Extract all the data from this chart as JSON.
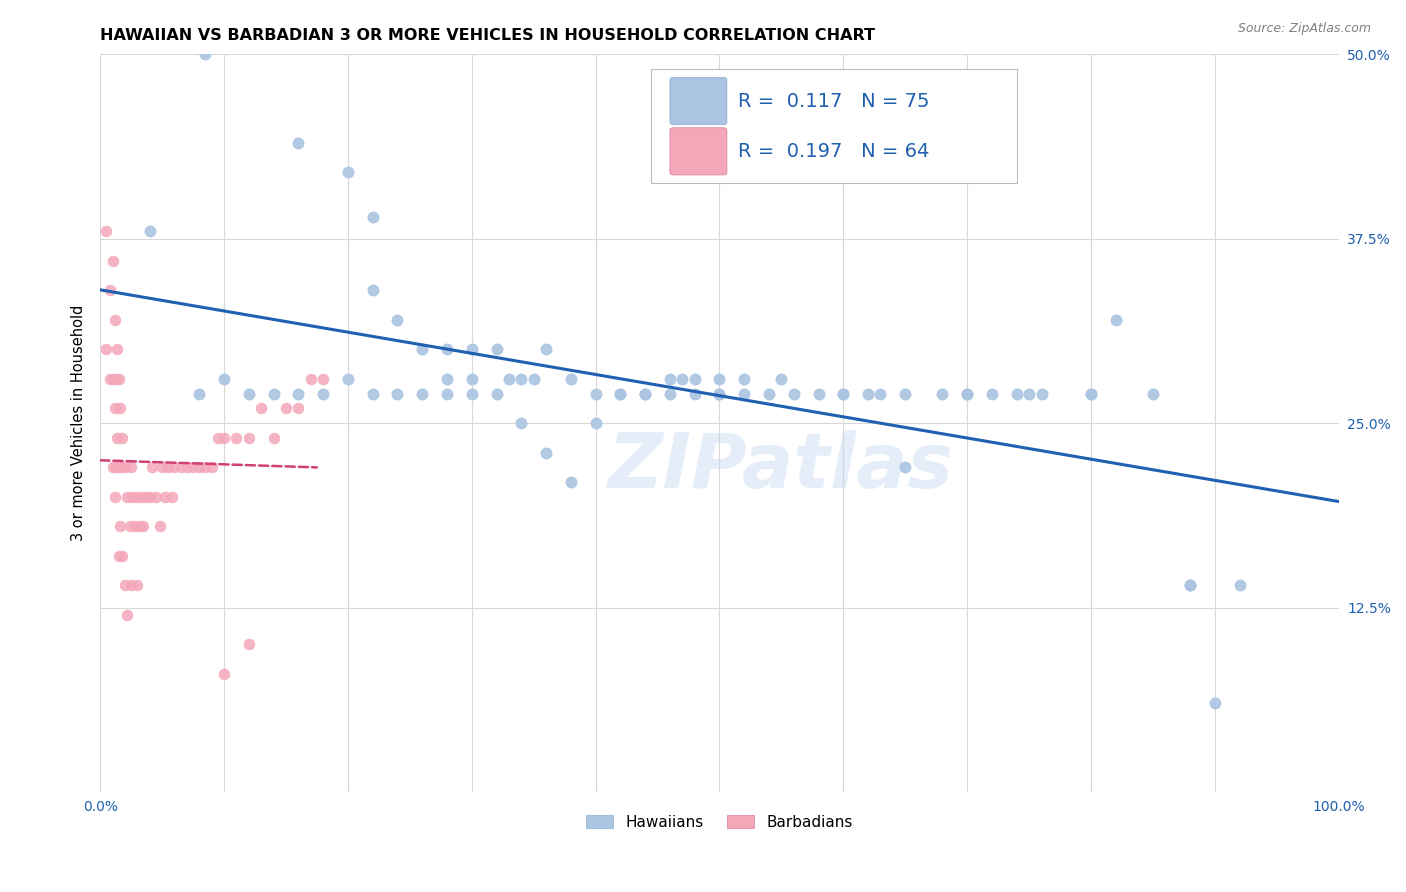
{
  "title": "HAWAIIAN VS BARBADIAN 3 OR MORE VEHICLES IN HOUSEHOLD CORRELATION CHART",
  "source": "Source: ZipAtlas.com",
  "ylabel": "3 or more Vehicles in Household",
  "xlim": [
    0.0,
    1.0
  ],
  "ylim": [
    0.0,
    0.5
  ],
  "xticks": [
    0.0,
    0.1,
    0.2,
    0.3,
    0.4,
    0.5,
    0.6,
    0.7,
    0.8,
    0.9,
    1.0
  ],
  "xticklabels": [
    "0.0%",
    "",
    "",
    "",
    "",
    "",
    "",
    "",
    "",
    "",
    "100.0%"
  ],
  "yticks": [
    0.0,
    0.125,
    0.25,
    0.375,
    0.5
  ],
  "yticklabels": [
    "",
    "12.5%",
    "25.0%",
    "37.5%",
    "50.0%"
  ],
  "hawaiian_R": 0.117,
  "hawaiian_N": 75,
  "barbadian_R": 0.197,
  "barbadian_N": 64,
  "hawaiian_color": "#aac4e2",
  "barbadian_color": "#f4a7b9",
  "trend_hawaiian_color": "#2060b0",
  "trend_barbadian_color": "#d04070",
  "legend_text_color": "#2060b0",
  "watermark": "ZIPatlas",
  "hawaiian_x": [
    0.085,
    0.16,
    0.2,
    0.22,
    0.22,
    0.24,
    0.26,
    0.28,
    0.28,
    0.3,
    0.3,
    0.32,
    0.33,
    0.34,
    0.35,
    0.36,
    0.38,
    0.4,
    0.42,
    0.44,
    0.46,
    0.47,
    0.48,
    0.5,
    0.5,
    0.52,
    0.52,
    0.54,
    0.56,
    0.58,
    0.6,
    0.62,
    0.63,
    0.65,
    0.68,
    0.7,
    0.72,
    0.74,
    0.76,
    0.8,
    0.82,
    0.85,
    0.88,
    0.9,
    0.04,
    0.08,
    0.1,
    0.12,
    0.14,
    0.16,
    0.18,
    0.2,
    0.22,
    0.24,
    0.26,
    0.28,
    0.3,
    0.32,
    0.34,
    0.36,
    0.38,
    0.4,
    0.42,
    0.44,
    0.46,
    0.48,
    0.5,
    0.55,
    0.6,
    0.65,
    0.7,
    0.75,
    0.8,
    0.88,
    0.92
  ],
  "hawaiian_y": [
    0.5,
    0.44,
    0.42,
    0.39,
    0.34,
    0.32,
    0.3,
    0.3,
    0.28,
    0.3,
    0.28,
    0.3,
    0.28,
    0.28,
    0.28,
    0.3,
    0.28,
    0.27,
    0.27,
    0.27,
    0.28,
    0.28,
    0.28,
    0.27,
    0.28,
    0.28,
    0.27,
    0.27,
    0.27,
    0.27,
    0.27,
    0.27,
    0.27,
    0.22,
    0.27,
    0.27,
    0.27,
    0.27,
    0.27,
    0.27,
    0.32,
    0.27,
    0.14,
    0.06,
    0.38,
    0.27,
    0.28,
    0.27,
    0.27,
    0.27,
    0.27,
    0.28,
    0.27,
    0.27,
    0.27,
    0.27,
    0.27,
    0.27,
    0.25,
    0.23,
    0.21,
    0.25,
    0.27,
    0.27,
    0.27,
    0.27,
    0.27,
    0.28,
    0.27,
    0.27,
    0.27,
    0.27,
    0.27,
    0.14,
    0.14
  ],
  "barbadian_x": [
    0.005,
    0.005,
    0.008,
    0.008,
    0.01,
    0.01,
    0.01,
    0.012,
    0.012,
    0.012,
    0.013,
    0.013,
    0.014,
    0.014,
    0.015,
    0.015,
    0.015,
    0.016,
    0.016,
    0.017,
    0.018,
    0.018,
    0.02,
    0.02,
    0.022,
    0.022,
    0.024,
    0.025,
    0.025,
    0.026,
    0.028,
    0.03,
    0.03,
    0.032,
    0.034,
    0.035,
    0.038,
    0.04,
    0.042,
    0.045,
    0.048,
    0.05,
    0.052,
    0.055,
    0.058,
    0.06,
    0.065,
    0.07,
    0.075,
    0.08,
    0.085,
    0.09,
    0.095,
    0.1,
    0.11,
    0.12,
    0.13,
    0.14,
    0.15,
    0.16,
    0.17,
    0.18,
    0.1,
    0.12
  ],
  "barbadian_y": [
    0.38,
    0.3,
    0.34,
    0.28,
    0.36,
    0.28,
    0.22,
    0.32,
    0.26,
    0.2,
    0.28,
    0.22,
    0.3,
    0.24,
    0.28,
    0.22,
    0.16,
    0.26,
    0.18,
    0.22,
    0.24,
    0.16,
    0.22,
    0.14,
    0.2,
    0.12,
    0.18,
    0.22,
    0.14,
    0.2,
    0.18,
    0.2,
    0.14,
    0.18,
    0.2,
    0.18,
    0.2,
    0.2,
    0.22,
    0.2,
    0.18,
    0.22,
    0.2,
    0.22,
    0.2,
    0.22,
    0.22,
    0.22,
    0.22,
    0.22,
    0.22,
    0.22,
    0.24,
    0.24,
    0.24,
    0.24,
    0.26,
    0.24,
    0.26,
    0.26,
    0.28,
    0.28,
    0.08,
    0.1
  ],
  "barbadian_trend_x": [
    0.0,
    0.175
  ],
  "hawaiian_trend_x": [
    0.0,
    1.0
  ],
  "grid_color": "#d8d8d8",
  "bottom_legend_hawaiian": "Hawaiians",
  "bottom_legend_barbadian": "Barbadians"
}
